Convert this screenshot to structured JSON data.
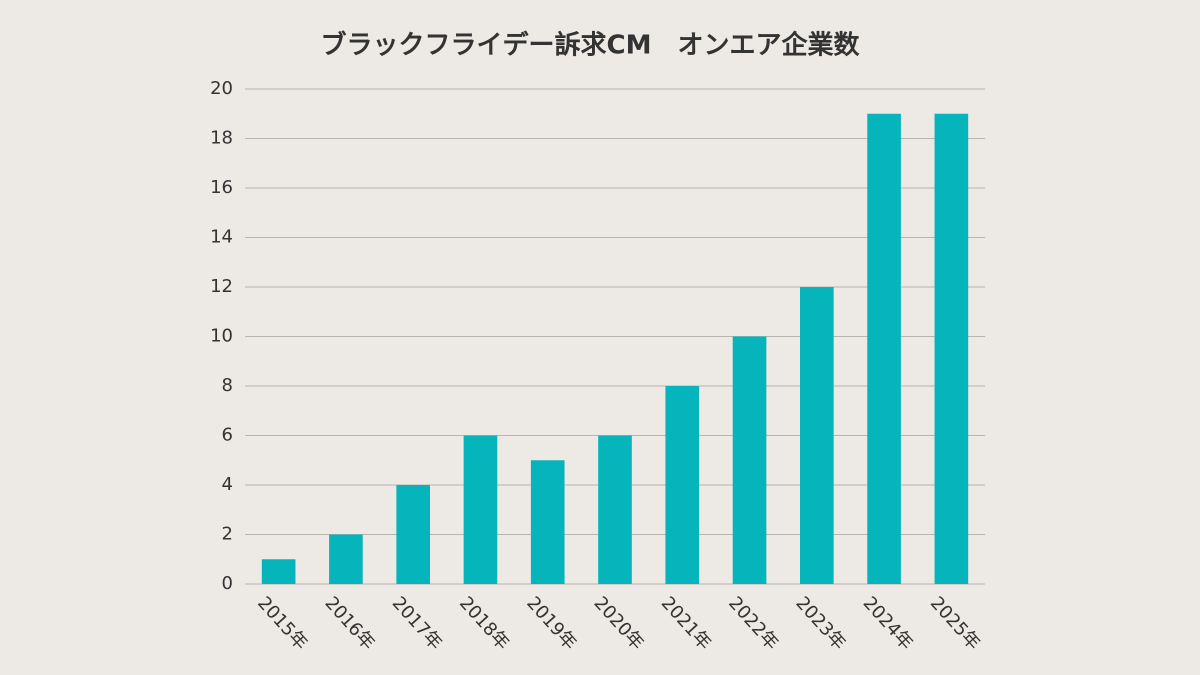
{
  "chart_data": {
    "type": "bar",
    "title": "ブラックフライデー訴求CM　オンエア企業数",
    "categories": [
      "2015年",
      "2016年",
      "2017年",
      "2018年",
      "2019年",
      "2020年",
      "2021年",
      "2022年",
      "2023年",
      "2024年",
      "2025年"
    ],
    "values": [
      1,
      2,
      4,
      6,
      5,
      6,
      8,
      10,
      12,
      19,
      19
    ],
    "color": "#06b5bb",
    "ylim": [
      0,
      20
    ],
    "yticks": [
      0,
      2,
      4,
      6,
      8,
      10,
      12,
      14,
      16,
      18,
      20
    ],
    "grid": true
  }
}
